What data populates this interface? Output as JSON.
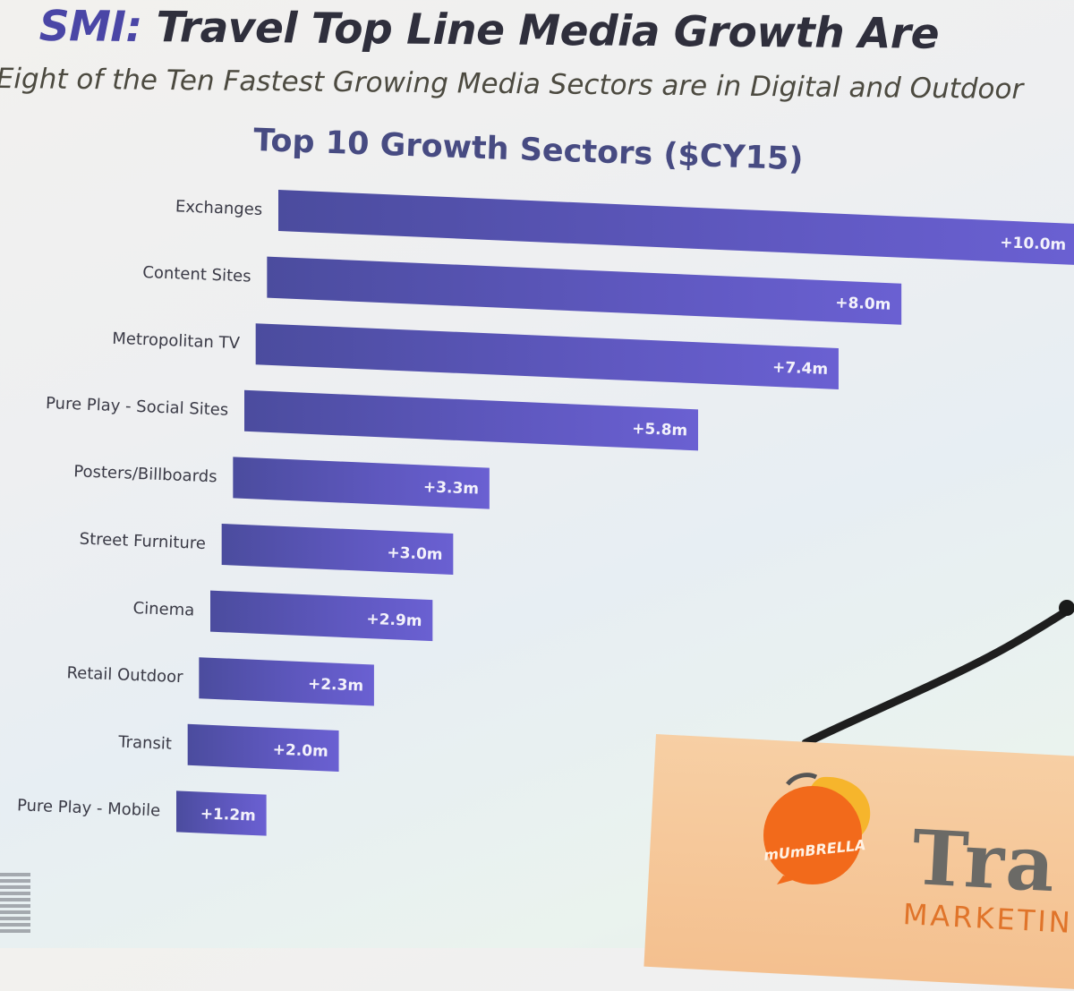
{
  "slide": {
    "title_prefix": "SMI:",
    "title_rest": " Travel Top Line Media Growth Are",
    "subtitle": "Eight of the Ten Fastest Growing Media Sectors are in Digital and Outdoor"
  },
  "chart_data": {
    "type": "bar",
    "orientation": "horizontal",
    "title": "Top 10 Growth Sectors ($CY15)",
    "categories": [
      "Exchanges",
      "Content Sites",
      "Metropolitan TV",
      "Pure Play - Social Sites",
      "Posters/Billboards",
      "Street Furniture",
      "Cinema",
      "Retail Outdoor",
      "Transit",
      "Pure Play - Mobile"
    ],
    "values": [
      10.0,
      8.0,
      7.4,
      5.8,
      3.3,
      3.0,
      2.9,
      2.3,
      2.0,
      1.2
    ],
    "value_labels": [
      "+10.0m",
      "+8.0m",
      "+7.4m",
      "+5.8m",
      "+3.3m",
      "+3.0m",
      "+2.9m",
      "+2.3m",
      "+2.0m",
      "+1.2m"
    ],
    "unit": "m",
    "xlim": [
      0,
      10
    ],
    "grid": false,
    "bar_color": "#5d5bb8"
  },
  "branding": {
    "logo_text": "mUmBRELLA",
    "brand_word": "Tra",
    "brand_sub": "MARKETING",
    "logo_icon": "speech-bubble-icon",
    "colors": {
      "logo_orange": "#f26a1b",
      "logo_yellow": "#f6b52c",
      "podium": "#f5c595",
      "brand_orange": "#e0742a"
    }
  }
}
